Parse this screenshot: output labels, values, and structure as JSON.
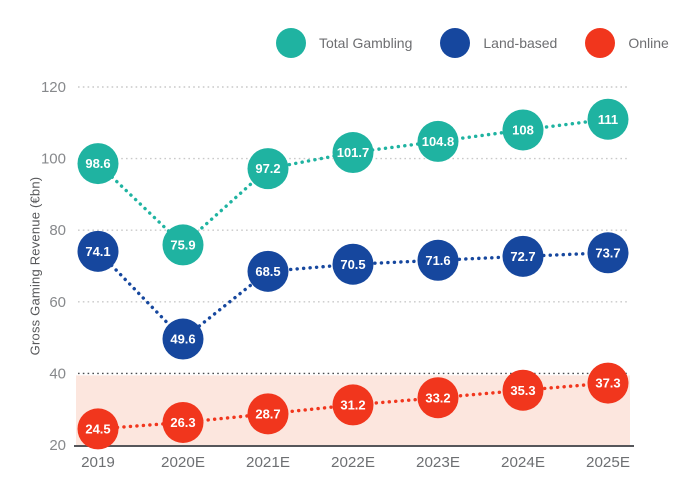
{
  "chart_data": {
    "type": "line",
    "style": "dotted lines with large labeled circle markers",
    "ylabel": "Gross Gaming Revenue (€bn)",
    "xlabel": "",
    "categories": [
      "2019",
      "2020E",
      "2021E",
      "2022E",
      "2023E",
      "2024E",
      "2025E"
    ],
    "series": [
      {
        "name": "Total Gambling",
        "color": "#1fb3a1",
        "values": [
          98.6,
          75.9,
          97.2,
          101.7,
          104.8,
          108,
          111
        ]
      },
      {
        "name": "Land-based",
        "color": "#16479e",
        "values": [
          74.1,
          49.6,
          68.5,
          70.5,
          71.6,
          72.7,
          73.7
        ]
      },
      {
        "name": "Online",
        "color": "#f1361d",
        "values": [
          24.5,
          26.3,
          28.7,
          31.2,
          33.2,
          35.3,
          37.3
        ]
      }
    ],
    "ylim": [
      20,
      120
    ],
    "yticks": [
      20,
      40,
      60,
      80,
      100,
      120
    ],
    "grid": "dotted horizontal gridlines",
    "legend_position": "top",
    "highlight_band": {
      "from": 20,
      "to": 40,
      "color": "#fce6de"
    }
  }
}
